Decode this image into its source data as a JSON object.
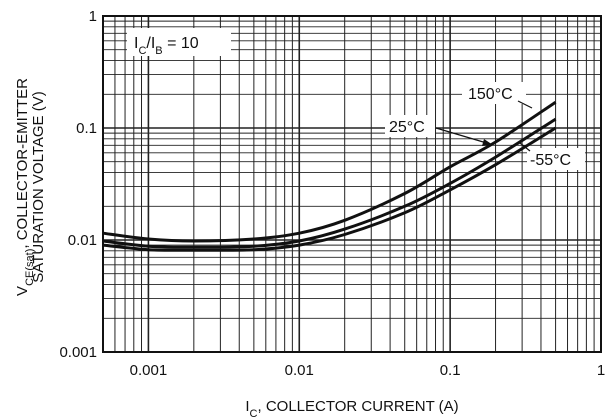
{
  "chart_data": {
    "type": "line",
    "x_scale": "log",
    "y_scale": "log",
    "xlim": [
      0.0005,
      1
    ],
    "ylim": [
      0.001,
      1
    ],
    "grid": true,
    "x_tick_labels": [
      "0.001",
      "0.01",
      "0.1",
      "1"
    ],
    "y_tick_labels": [
      "0.001",
      "0.01",
      "0.1",
      "1"
    ],
    "xlabel": {
      "main": "I",
      "sub": "C",
      "rest": ", COLLECTOR CURRENT (A)"
    },
    "ylabel": {
      "line1_main": "V",
      "line1_sub": "CE(sat)",
      "line1_rest": ", COLLECTOR-EMITTER",
      "line2": "SATURATION VOLTAGE (V)"
    },
    "condition": {
      "main1": "I",
      "sub1": "C",
      "slash": "/I",
      "sub2": "B",
      "rest": " = 10"
    },
    "series": [
      {
        "name": "150°C",
        "x": [
          0.0005,
          0.001,
          0.002,
          0.005,
          0.01,
          0.02,
          0.05,
          0.1,
          0.2,
          0.5
        ],
        "y": [
          0.0115,
          0.0102,
          0.0098,
          0.0102,
          0.0115,
          0.015,
          0.026,
          0.045,
          0.075,
          0.17
        ]
      },
      {
        "name": "25°C",
        "x": [
          0.0005,
          0.001,
          0.002,
          0.005,
          0.01,
          0.02,
          0.05,
          0.1,
          0.2,
          0.5
        ],
        "y": [
          0.0098,
          0.0088,
          0.0086,
          0.0088,
          0.0098,
          0.0125,
          0.02,
          0.032,
          0.055,
          0.12
        ]
      },
      {
        "name": "-55°C",
        "x": [
          0.0005,
          0.001,
          0.002,
          0.005,
          0.01,
          0.02,
          0.05,
          0.1,
          0.2,
          0.5
        ],
        "y": [
          0.009,
          0.0082,
          0.0081,
          0.0082,
          0.009,
          0.0112,
          0.0175,
          0.028,
          0.047,
          0.1
        ]
      }
    ],
    "annotations": [
      "150°C",
      "25°C",
      "-55°C"
    ]
  }
}
